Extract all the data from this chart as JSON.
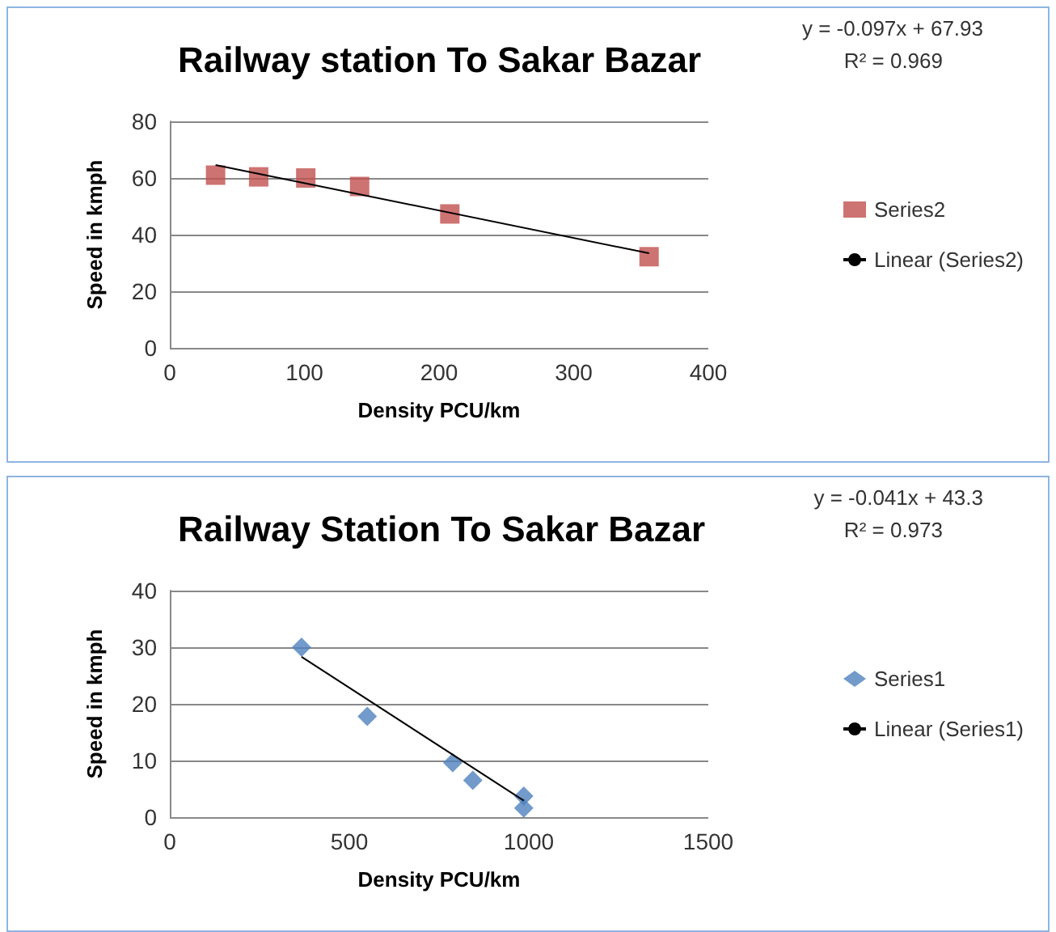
{
  "chart_data": [
    {
      "type": "scatter",
      "title": "Railway station To Sakar Bazar",
      "xlabel": "Density PCU/km",
      "ylabel": "Speed in kmph",
      "annotations": [
        "y = -0.097x + 67.93",
        "R² = 0.969"
      ],
      "xlim": [
        0,
        400
      ],
      "xticks": [
        0,
        100,
        200,
        300,
        400
      ],
      "ylim": [
        0,
        80
      ],
      "yticks": [
        0,
        20,
        40,
        60,
        80
      ],
      "grid": "y",
      "legend": "right",
      "series": [
        {
          "name": "Series2",
          "color": "#c0504d",
          "marker": "square",
          "x": [
            34,
            66,
            101,
            141,
            208,
            356
          ],
          "values": [
            61,
            60.4,
            60,
            57,
            47.3,
            32.2
          ]
        },
        {
          "name": "Linear (Series2)",
          "type": "line",
          "color": "#000000",
          "marker": "none",
          "x": [
            34,
            356
          ],
          "values": [
            64.6,
            33.4
          ]
        }
      ]
    },
    {
      "type": "scatter",
      "title": "Railway Station To Sakar Bazar",
      "xlabel": "Density PCU/km",
      "ylabel": "Speed in kmph",
      "annotations": [
        "y = -0.041x + 43.3",
        "R² = 0.973"
      ],
      "xlim": [
        0,
        1500
      ],
      "xticks": [
        0,
        500,
        1000,
        1500
      ],
      "ylim": [
        0,
        40
      ],
      "yticks": [
        0,
        10,
        20,
        30,
        40
      ],
      "grid": "y",
      "legend": "right",
      "series": [
        {
          "name": "Series1",
          "color": "#4f81bd",
          "marker": "diamond",
          "x": [
            367,
            550,
            788,
            844,
            986,
            986
          ],
          "values": [
            30,
            17.8,
            9.6,
            6.5,
            3.7,
            1.6
          ]
        },
        {
          "name": "Linear (Series1)",
          "type": "line",
          "color": "#000000",
          "marker": "none",
          "x": [
            367,
            986
          ],
          "values": [
            28.3,
            2.9
          ]
        }
      ]
    }
  ]
}
